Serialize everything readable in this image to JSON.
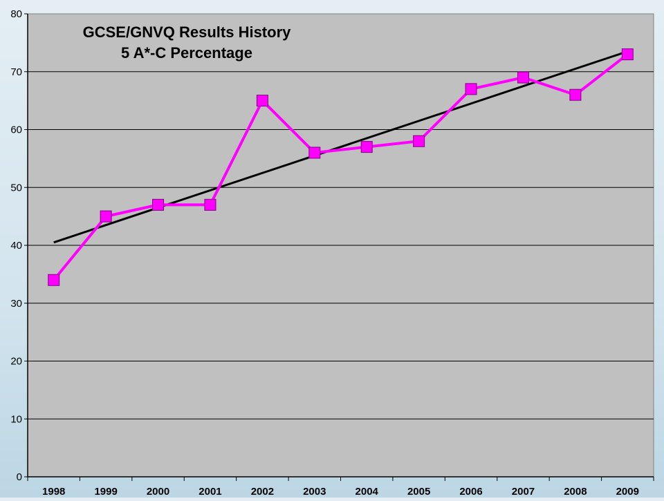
{
  "chart_data": {
    "type": "line",
    "title": [
      "GCSE/GNVQ Results History",
      "5 A*-C Percentage"
    ],
    "xlabel": "",
    "ylabel": "",
    "categories": [
      "1998",
      "1999",
      "2000",
      "2001",
      "2002",
      "2003",
      "2004",
      "2005",
      "2006",
      "2007",
      "2008",
      "2009"
    ],
    "series": [
      {
        "values": [
          34,
          45,
          47,
          47,
          65,
          56,
          57,
          58,
          67,
          69,
          66,
          73
        ]
      }
    ],
    "trendline": {
      "type": "linear",
      "start": 40.5,
      "end": 73.5
    },
    "ylim": [
      0,
      80
    ],
    "yticks": [
      0,
      10,
      20,
      30,
      40,
      50,
      60,
      70,
      80
    ],
    "grid": true,
    "legend": "none",
    "colors": {
      "series": "#ff00ff",
      "trendline": "#000000",
      "plot_background": "#c0c0c0",
      "gridline": "#000000"
    }
  }
}
